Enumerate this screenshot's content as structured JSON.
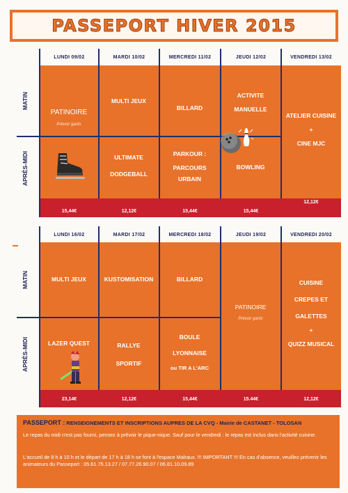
{
  "title": "PASSEPORT HIVER 2015",
  "labels": {
    "matin": "MATIN",
    "apres_midi": "APRÈS-MIDI"
  },
  "week1": {
    "days": [
      "LUNDI 09/02",
      "MARDI 10/02",
      "MERCREDI 11/02",
      "JEUDI 12/02",
      "VENDREDI 13/02"
    ],
    "lundi": {
      "activity": "PATINOIRE",
      "note": "Prévoir gants"
    },
    "mardi_matin": "MULTI JEUX",
    "mardi_apm": [
      "ULTIMATE",
      "DODGEBALL"
    ],
    "mercredi_matin": "BILLARD",
    "mercredi_apm": [
      "PARKOUR :",
      "PARCOURS",
      "URBAIN"
    ],
    "jeudi_matin": [
      "ACTIVITE",
      "MANUELLE"
    ],
    "jeudi_apm": "BOWLING",
    "vendredi": [
      "ATELIER CUISINE",
      "+",
      "CINE MJC"
    ],
    "prices": [
      "15,44€",
      "12,12€",
      "15,44€",
      "15,44€",
      "12,12€"
    ]
  },
  "week2": {
    "days": [
      "LUNDI 16/02",
      "MARDI 17/02",
      "MERCREDI 18/02",
      "JEUDI 19/02",
      "VENDREDI 20/02"
    ],
    "lundi_matin": "MULTI JEUX",
    "lundi_apm": "LAZER QUEST",
    "mardi_matin": "KUSTOMISATION",
    "mardi_apm": [
      "RALLYE",
      "SPORTIF"
    ],
    "mercredi_matin": "BILLARD",
    "mercredi_apm": [
      "BOULE",
      "LYONNAISE",
      "ou TIR A L'ARC"
    ],
    "jeudi": {
      "activity": "PATINOIRE",
      "note": "Prévoir gants"
    },
    "vendredi": [
      "CUISINE",
      "CREPES ET",
      "GALETTES",
      "+",
      "QUIZZ MUSICAL"
    ],
    "prices": [
      "23,14€",
      "12,12€",
      "15,44€",
      "15.44€",
      "12,12€"
    ]
  },
  "info": {
    "heading_bold": "PASSEPORT :",
    "heading_rest": " RENSEIGNEMENTS ET INSCRIPTIONS  AUPRES DE LA CVQ - Mairie de CASTANET - TOLOSAN",
    "p1": "Le repas du midi n'est pas fourni, pensez à prévoir le pique-nique. Sauf pour le vendredi : le repas est inclus dans l'activité cuisine.",
    "p2": "L'accueil de 8 h à 10 h et le départ de 17 h à 18 h se font à l'espace Malraux. !!! IMPORTANT !!! En cas d'absence, veuillez prévenir les animateurs du Passeport : 05.61.75.13.27 / 07.77.26.90.07 / 06.81.10.09.89"
  },
  "colors": {
    "orange": "#e8722a",
    "price_band": "#c8202c",
    "grid": "#1f2d6b",
    "header_text": "#1d2252"
  },
  "icons": [
    "ice-skate-icon",
    "bowling-icon",
    "laser-fighter-icon"
  ]
}
